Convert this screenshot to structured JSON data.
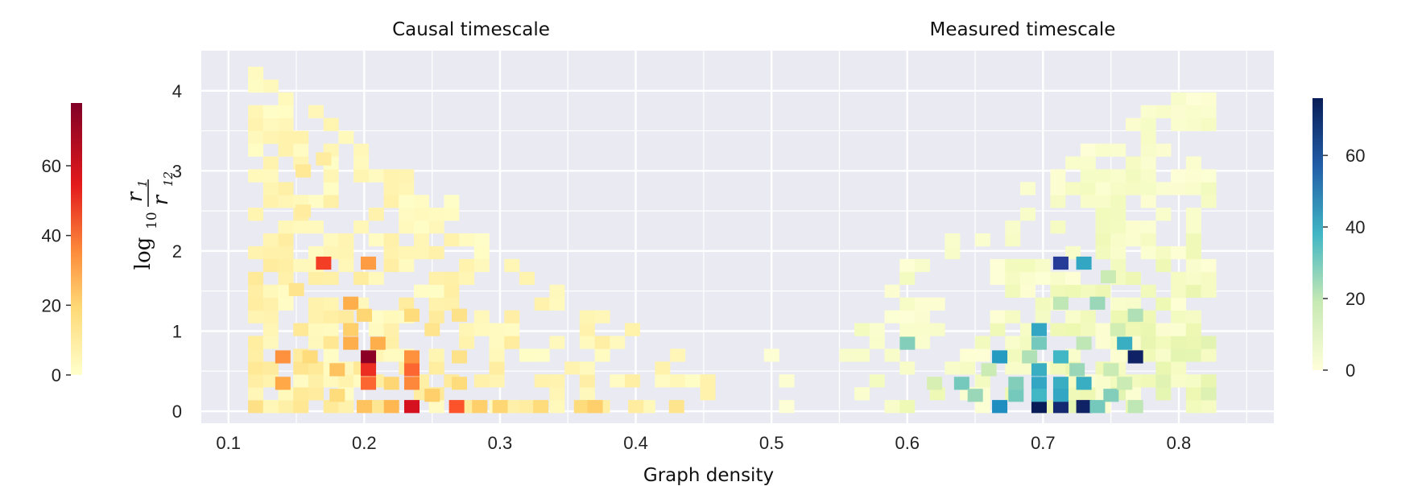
{
  "chart_data": {
    "type": "heatmap",
    "xlabel": "Graph density",
    "ylabel": "log10 r1/r12",
    "xlim": [
      0.08,
      0.87
    ],
    "ylim": [
      -0.15,
      4.5
    ],
    "xticks": [
      0.1,
      0.2,
      0.3,
      0.4,
      0.5,
      0.6,
      0.7,
      0.8
    ],
    "yticks": [
      0,
      1,
      2,
      3,
      4
    ],
    "grid": true,
    "bin_width": 0.0111,
    "bin_height": 0.16,
    "series": [
      {
        "title": "Causal timescale",
        "colormap": "YlOrRd",
        "colorbar": {
          "ticks": [
            0,
            20,
            40,
            60
          ],
          "max": 78,
          "side": "left"
        },
        "cells": [
          [
            0.17,
            1.85,
            52
          ],
          [
            0.203,
            1.85,
            35
          ],
          [
            0.203,
            0.68,
            76
          ],
          [
            0.203,
            0.52,
            55
          ],
          [
            0.203,
            0.35,
            45
          ],
          [
            0.235,
            0.06,
            62
          ],
          [
            0.235,
            0.52,
            45
          ],
          [
            0.235,
            0.35,
            40
          ],
          [
            0.235,
            0.68,
            38
          ],
          [
            0.268,
            0.06,
            48
          ],
          [
            0.14,
            0.68,
            38
          ],
          [
            0.14,
            0.35,
            32
          ],
          [
            0.19,
            1.35,
            30
          ],
          [
            0.19,
            0.85,
            30
          ],
          [
            0.21,
            0.85,
            30
          ],
          [
            0.18,
            0.52,
            25
          ],
          [
            0.22,
            0.06,
            28
          ],
          [
            0.2,
            0.06,
            25
          ],
          [
            0.25,
            0.2,
            22
          ],
          [
            0.285,
            0.06,
            22
          ],
          [
            0.3,
            0.06,
            20
          ],
          [
            0.33,
            0.06,
            18
          ],
          [
            0.36,
            0.06,
            18
          ],
          [
            0.37,
            0.06,
            22
          ],
          [
            0.43,
            0.06,
            14
          ],
          [
            0.4,
            0.06,
            10
          ],
          [
            0.2,
            1.2,
            20
          ],
          [
            0.235,
            1.2,
            18
          ],
          [
            0.19,
            1.02,
            22
          ],
          [
            0.22,
            0.35,
            20
          ],
          [
            0.16,
            0.68,
            18
          ],
          [
            0.15,
            1.52,
            14
          ],
          [
            0.155,
            2.5,
            10
          ],
          [
            0.155,
            3.0,
            12
          ],
          [
            0.17,
            3.15,
            10
          ],
          [
            0.18,
            0.2,
            18
          ],
          [
            0.27,
            1.2,
            15
          ],
          [
            0.27,
            0.35,
            18
          ],
          [
            0.27,
            0.68,
            15
          ],
          [
            0.25,
            1.02,
            14
          ]
        ]
      },
      {
        "title": "Measured timescale",
        "colormap": "YlGnBu",
        "colorbar": {
          "ticks": [
            0,
            20,
            40,
            60
          ],
          "max": 76,
          "side": "right"
        },
        "cells": [
          [
            0.713,
            1.85,
            65
          ],
          [
            0.73,
            1.85,
            42
          ],
          [
            0.768,
            0.68,
            74
          ],
          [
            0.697,
            0.06,
            76
          ],
          [
            0.713,
            0.06,
            72
          ],
          [
            0.73,
            0.06,
            74
          ],
          [
            0.668,
            0.06,
            48
          ],
          [
            0.668,
            0.68,
            45
          ],
          [
            0.697,
            0.35,
            42
          ],
          [
            0.697,
            0.2,
            38
          ],
          [
            0.697,
            0.52,
            40
          ],
          [
            0.697,
            1.02,
            42
          ],
          [
            0.713,
            0.35,
            40
          ],
          [
            0.713,
            0.2,
            42
          ],
          [
            0.713,
            0.68,
            38
          ],
          [
            0.73,
            0.35,
            40
          ],
          [
            0.697,
            0.85,
            30
          ],
          [
            0.74,
            0.06,
            30
          ],
          [
            0.76,
            0.85,
            40
          ],
          [
            0.75,
            0.2,
            28
          ],
          [
            0.6,
            0.85,
            28
          ],
          [
            0.64,
            0.35,
            30
          ],
          [
            0.65,
            0.2,
            25
          ],
          [
            0.68,
            0.2,
            30
          ],
          [
            0.68,
            0.35,
            28
          ],
          [
            0.725,
            0.52,
            25
          ],
          [
            0.74,
            1.35,
            25
          ],
          [
            0.768,
            1.2,
            22
          ],
          [
            0.713,
            1.35,
            20
          ],
          [
            0.73,
            0.85,
            20
          ],
          [
            0.76,
            0.35,
            18
          ],
          [
            0.768,
            0.06,
            20
          ],
          [
            0.748,
            1.68,
            18
          ],
          [
            0.69,
            0.68,
            22
          ],
          [
            0.66,
            0.52,
            18
          ],
          [
            0.62,
            0.35,
            15
          ],
          [
            0.75,
            0.52,
            18
          ],
          [
            0.755,
            1.02,
            16
          ]
        ]
      }
    ]
  }
}
